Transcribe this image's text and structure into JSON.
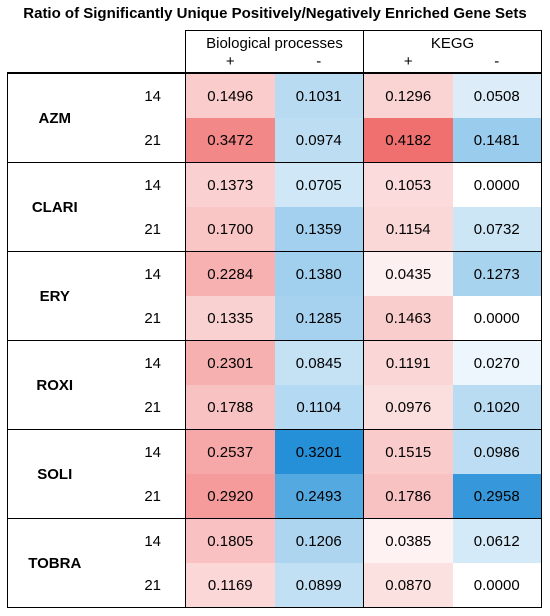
{
  "chart_data": {
    "type": "table",
    "title": "Ratio of Significantly Unique Positively/Negatively Enriched Gene Sets",
    "column_groups": [
      {
        "label": "Biological processes",
        "subcolumns": [
          "+",
          "-"
        ]
      },
      {
        "label": "KEGG",
        "subcolumns": [
          "+",
          "-"
        ]
      }
    ],
    "colors": {
      "positive": "#f07070",
      "negative": "#2590d8",
      "zero": "#ffffff"
    },
    "groups": [
      {
        "name": "AZM",
        "rows": [
          {
            "day": "14",
            "values": [
              "0.1496",
              "0.1031",
              "0.1296",
              "0.0508"
            ]
          },
          {
            "day": "21",
            "values": [
              "0.3472",
              "0.0974",
              "0.4182",
              "0.1481"
            ]
          }
        ]
      },
      {
        "name": "CLARI",
        "rows": [
          {
            "day": "14",
            "values": [
              "0.1373",
              "0.0705",
              "0.1053",
              "0.0000"
            ]
          },
          {
            "day": "21",
            "values": [
              "0.1700",
              "0.1359",
              "0.1154",
              "0.0732"
            ]
          }
        ]
      },
      {
        "name": "ERY",
        "rows": [
          {
            "day": "14",
            "values": [
              "0.2284",
              "0.1380",
              "0.0435",
              "0.1273"
            ]
          },
          {
            "day": "21",
            "values": [
              "0.1335",
              "0.1285",
              "0.1463",
              "0.0000"
            ]
          }
        ]
      },
      {
        "name": "ROXI",
        "rows": [
          {
            "day": "14",
            "values": [
              "0.2301",
              "0.0845",
              "0.1191",
              "0.0270"
            ]
          },
          {
            "day": "21",
            "values": [
              "0.1788",
              "0.1104",
              "0.0976",
              "0.1020"
            ]
          }
        ]
      },
      {
        "name": "SOLI",
        "rows": [
          {
            "day": "14",
            "values": [
              "0.2537",
              "0.3201",
              "0.1515",
              "0.0986"
            ]
          },
          {
            "day": "21",
            "values": [
              "0.2920",
              "0.2493",
              "0.1786",
              "0.2958"
            ]
          }
        ]
      },
      {
        "name": "TOBRA",
        "rows": [
          {
            "day": "14",
            "values": [
              "0.1805",
              "0.1206",
              "0.0385",
              "0.0612"
            ]
          },
          {
            "day": "21",
            "values": [
              "0.1169",
              "0.0899",
              "0.0870",
              "0.0000"
            ]
          }
        ]
      }
    ]
  }
}
